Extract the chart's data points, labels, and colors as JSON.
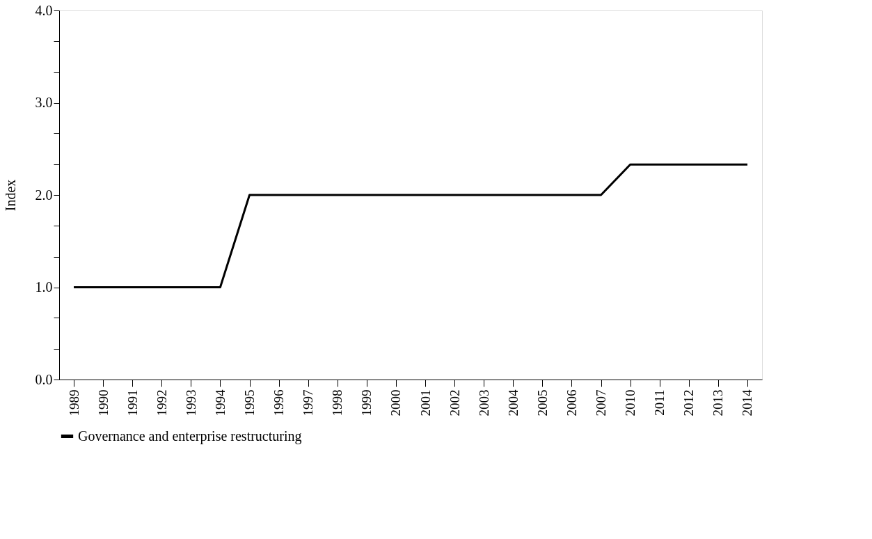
{
  "chart_data": {
    "type": "line",
    "ylabel": "Index",
    "categories": [
      "1989",
      "1990",
      "1991",
      "1992",
      "1993",
      "1994",
      "1995",
      "1996",
      "1997",
      "1998",
      "1999",
      "2000",
      "2001",
      "2002",
      "2003",
      "2004",
      "2005",
      "2006",
      "2007",
      "2010",
      "2011",
      "2012",
      "2013",
      "2014"
    ],
    "series": [
      {
        "name": "Governance and enterprise restructuring",
        "color": "#000000",
        "values": [
          1.0,
          1.0,
          1.0,
          1.0,
          1.0,
          1.0,
          2.0,
          2.0,
          2.0,
          2.0,
          2.0,
          2.0,
          2.0,
          2.0,
          2.0,
          2.0,
          2.0,
          2.0,
          2.0,
          2.33,
          2.33,
          2.33,
          2.33,
          2.33
        ]
      }
    ],
    "ylim": [
      0,
      4
    ],
    "yticks": [
      {
        "value": 0,
        "label": "0.0"
      },
      {
        "value": 0.33,
        "label": null
      },
      {
        "value": 0.67,
        "label": null
      },
      {
        "value": 1,
        "label": "1.0"
      },
      {
        "value": 1.33,
        "label": null
      },
      {
        "value": 1.67,
        "label": null
      },
      {
        "value": 2,
        "label": "2.0"
      },
      {
        "value": 2.33,
        "label": null
      },
      {
        "value": 2.67,
        "label": null
      },
      {
        "value": 3,
        "label": "3.0"
      },
      {
        "value": 3.33,
        "label": null
      },
      {
        "value": 3.67,
        "label": null
      },
      {
        "value": 4,
        "label": "4.0"
      }
    ],
    "grid": false,
    "legend": "bottom",
    "marker": "none",
    "line_style": "solid"
  }
}
